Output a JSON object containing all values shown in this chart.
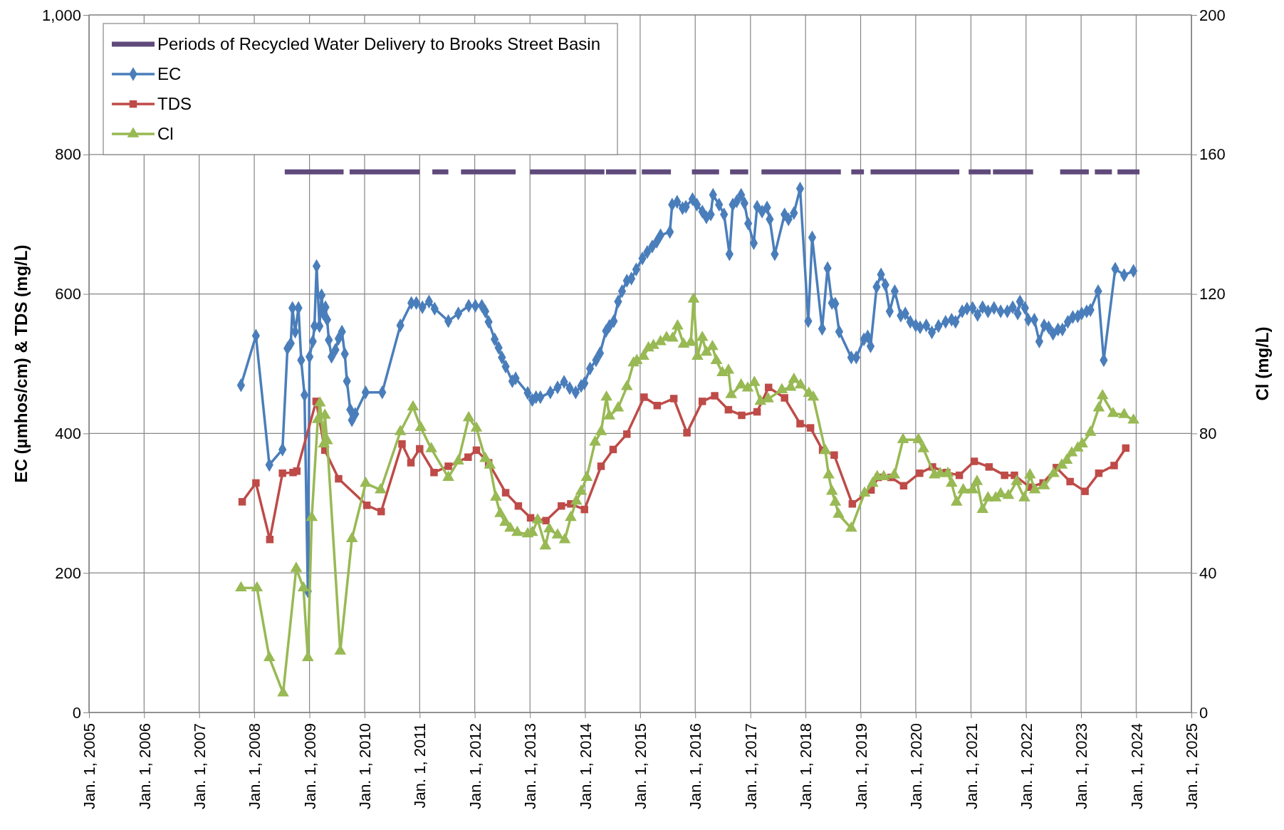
{
  "chart_data": {
    "type": "line",
    "ylabel": "EC (µmhos/cm) & TDS (mg/L)",
    "y2label": "Cl (mg/L)",
    "xlim": [
      "2005-01-01",
      "2025-01-01"
    ],
    "xticks": [
      {
        "value": "2005-01-01",
        "label": "Jan. 1, 2005"
      },
      {
        "value": "2006-01-01",
        "label": "Jan. 1, 2006"
      },
      {
        "value": "2007-01-01",
        "label": "Jan. 1, 2007"
      },
      {
        "value": "2008-01-01",
        "label": "Jan. 1, 2008"
      },
      {
        "value": "2009-01-01",
        "label": "Jan. 1, 2009"
      },
      {
        "value": "2010-01-01",
        "label": "Jan. 1, 2010"
      },
      {
        "value": "2011-01-01",
        "label": "Jan. 1, 2011"
      },
      {
        "value": "2012-01-01",
        "label": "Jan. 1, 2012"
      },
      {
        "value": "2013-01-01",
        "label": "Jan. 1, 2013"
      },
      {
        "value": "2014-01-01",
        "label": "Jan. 1, 2014"
      },
      {
        "value": "2015-01-01",
        "label": "Jan. 1, 2015"
      },
      {
        "value": "2016-01-01",
        "label": "Jan. 1, 2016"
      },
      {
        "value": "2017-01-01",
        "label": "Jan. 1, 2017"
      },
      {
        "value": "2018-01-01",
        "label": "Jan. 1, 2018"
      },
      {
        "value": "2019-01-01",
        "label": "Jan. 1, 2019"
      },
      {
        "value": "2020-01-01",
        "label": "Jan. 1, 2020"
      },
      {
        "value": "2021-01-01",
        "label": "Jan. 1, 2021"
      },
      {
        "value": "2022-01-01",
        "label": "Jan. 1, 2022"
      },
      {
        "value": "2023-01-01",
        "label": "Jan. 1, 2023"
      },
      {
        "value": "2024-01-01",
        "label": "Jan. 1, 2024"
      },
      {
        "value": "2025-01-01",
        "label": "Jan. 1, 2025"
      }
    ],
    "ylim": [
      0,
      1000
    ],
    "yticks": [
      0,
      200,
      400,
      600,
      800,
      {
        "value": 1000,
        "label": "1,000"
      }
    ],
    "y2lim": [
      0,
      200
    ],
    "y2ticks": [
      0,
      40,
      80,
      120,
      160,
      200
    ],
    "grid": true,
    "legend": "top left",
    "line_style": "solid",
    "series": [
      {
        "name": "Periods of Recycled Water Delivery to Brooks Street Basin",
        "color": "#604a7b",
        "marker": "none",
        "x": [
          "2008-07-21",
          "2009-08-15",
          "2009-09-03",
          "2009-09-24",
          "2011-01-01",
          "2011-02-10",
          "2011-03-26",
          "2011-07-10",
          "2011-08-19",
          "2011-10-02",
          "2012-09-28",
          "2012-11-15",
          "2013-01-01",
          "2014-05-09",
          "2014-05-12",
          "2014-05-20",
          "2014-12-06",
          "2014-12-25",
          "2015-01-12",
          "2015-07-24",
          "2015-10-02",
          "2015-12-10",
          "2016-06-07",
          "2016-07-13",
          "2016-08-19",
          "2016-12-17",
          "2017-01-30",
          "2017-03-15",
          "2018-08-23",
          "2018-09-24",
          "2018-10-31",
          "2019-01-23",
          "2019-02-14",
          "2019-03-08",
          "2020-10-16",
          "2020-11-15",
          "2020-12-17",
          "2021-05-12",
          "2021-05-20",
          "2021-05-27",
          "2022-02-17",
          "2022-05-16",
          "2022-08-15",
          "2023-02-21",
          "2023-03-15",
          "2023-04-02",
          "2023-07-24",
          "2023-08-12",
          "2023-08-30",
          "2024-01-23"
        ],
        "values": [
          775,
          775,
          null,
          775,
          775,
          null,
          775,
          775,
          null,
          775,
          775,
          null,
          775,
          775,
          null,
          775,
          775,
          null,
          775,
          775,
          null,
          775,
          775,
          null,
          775,
          775,
          null,
          775,
          775,
          null,
          775,
          775,
          null,
          775,
          775,
          null,
          775,
          775,
          null,
          775,
          775,
          null,
          775,
          775,
          null,
          775,
          775,
          null,
          775,
          775
        ]
      },
      {
        "name": "EC",
        "color": "#4a7ebb",
        "marker": "diamond",
        "x": [
          "2007-10-05",
          "2008-01-12",
          "2008-04-10",
          "2008-07-06",
          "2008-08-08",
          "2008-08-30",
          "2008-09-10",
          "2008-09-28",
          "2008-10-20",
          "2008-11-07",
          "2008-11-29",
          "2008-12-21",
          "2009-01-01",
          "2009-01-23",
          "2009-02-03",
          "2009-02-17",
          "2009-03-08",
          "2009-03-22",
          "2009-04-02",
          "2009-04-17",
          "2009-04-28",
          "2009-05-09",
          "2009-05-27",
          "2009-06-22",
          "2009-07-13",
          "2009-08-04",
          "2009-08-23",
          "2009-09-06",
          "2009-09-28",
          "2009-10-09",
          "2009-10-31",
          "2010-01-08",
          "2010-04-28",
          "2010-08-26",
          "2010-11-07",
          "2010-12-10",
          "2011-01-19",
          "2011-03-04",
          "2011-04-10",
          "2011-07-10",
          "2011-09-14",
          "2011-11-22",
          "2012-01-05",
          "2012-02-17",
          "2012-03-11",
          "2012-04-02",
          "2012-05-12",
          "2012-06-07",
          "2012-06-29",
          "2012-07-24",
          "2012-09-06",
          "2012-09-28",
          "2012-12-17",
          "2013-01-16",
          "2013-02-10",
          "2013-03-11",
          "2013-05-16",
          "2013-07-03",
          "2013-08-15",
          "2013-09-21",
          "2013-10-31",
          "2013-12-06",
          "2013-12-28",
          "2014-02-03",
          "2014-03-15",
          "2014-04-10",
          "2014-05-20",
          "2014-06-11",
          "2014-07-10",
          "2014-08-08",
          "2014-09-03",
          "2014-10-05",
          "2014-11-04",
          "2014-12-06",
          "2015-01-16",
          "2015-02-17",
          "2015-03-22",
          "2015-04-21",
          "2015-05-16",
          "2015-07-17",
          "2015-08-01",
          "2015-09-03",
          "2015-10-09",
          "2015-10-31",
          "2015-12-14",
          "2016-01-12",
          "2016-02-17",
          "2016-03-15",
          "2016-04-13",
          "2016-04-28",
          "2016-06-07",
          "2016-07-10",
          "2016-08-15",
          "2016-09-06",
          "2016-10-02",
          "2016-10-31",
          "2016-11-22",
          "2016-12-17",
          "2017-01-23",
          "2017-02-14",
          "2017-03-19",
          "2017-04-21",
          "2017-05-09",
          "2017-06-11",
          "2017-08-15",
          "2017-09-10",
          "2017-10-16",
          "2017-11-26",
          "2018-01-19",
          "2018-02-14",
          "2018-04-21",
          "2018-05-27",
          "2018-06-25",
          "2018-07-17",
          "2018-08-12",
          "2018-10-31",
          "2018-12-03",
          "2019-01-23",
          "2019-02-17",
          "2019-03-08",
          "2019-04-17",
          "2019-05-16",
          "2019-06-14",
          "2019-07-13",
          "2019-08-15",
          "2019-09-24",
          "2019-10-24",
          "2019-11-26",
          "2020-01-01",
          "2020-01-30",
          "2020-03-11",
          "2020-04-17",
          "2020-05-31",
          "2020-07-17",
          "2020-08-26",
          "2020-09-21",
          "2020-11-04",
          "2020-12-06",
          "2021-01-12",
          "2021-02-14",
          "2021-03-19",
          "2021-04-24",
          "2021-06-03",
          "2021-07-17",
          "2021-08-30",
          "2021-10-05",
          "2021-11-07",
          "2021-11-22",
          "2021-12-25",
          "2022-01-16",
          "2022-02-25",
          "2022-03-30",
          "2022-05-01",
          "2022-05-31",
          "2022-06-29",
          "2022-08-01",
          "2022-08-30",
          "2022-10-05",
          "2022-11-07",
          "2022-12-10",
          "2023-01-05",
          "2023-02-07",
          "2023-03-04",
          "2023-04-24",
          "2023-05-31",
          "2023-08-15",
          "2023-10-13",
          "2023-12-14"
        ],
        "values": [
          469,
          540,
          355,
          377,
          522,
          529,
          580,
          546,
          580,
          505,
          455,
          174,
          510,
          532,
          554,
          640,
          554,
          598,
          572,
          581,
          563,
          534,
          510,
          520,
          536,
          546,
          514,
          475,
          434,
          419,
          428,
          459,
          459,
          555,
          587,
          587,
          581,
          589,
          579,
          561,
          572,
          583,
          583,
          583,
          575,
          560,
          535,
          523,
          509,
          496,
          475,
          479,
          458,
          448,
          452,
          452,
          459,
          466,
          474,
          465,
          459,
          468,
          472,
          493,
          505,
          515,
          547,
          554,
          561,
          589,
          604,
          619,
          622,
          635,
          651,
          660,
          668,
          675,
          684,
          689,
          728,
          732,
          723,
          725,
          736,
          728,
          718,
          710,
          714,
          742,
          728,
          714,
          657,
          728,
          733,
          742,
          730,
          701,
          673,
          725,
          718,
          724,
          707,
          657,
          714,
          707,
          716,
          751,
          561,
          681,
          550,
          637,
          587,
          586,
          546,
          509,
          509,
          535,
          539,
          525,
          610,
          628,
          613,
          575,
          604,
          569,
          572,
          560,
          555,
          552,
          555,
          545,
          554,
          560,
          563,
          560,
          575,
          579,
          580,
          570,
          581,
          575,
          580,
          575,
          575,
          581,
          572,
          589,
          580,
          563,
          563,
          532,
          555,
          552,
          543,
          549,
          549,
          560,
          567,
          568,
          572,
          575,
          577,
          604,
          505,
          636,
          627,
          633
        ]
      },
      {
        "name": "TDS",
        "color": "#be4b48",
        "marker": "square",
        "x": [
          "2007-10-13",
          "2008-01-12",
          "2008-04-13",
          "2008-07-06",
          "2008-09-14",
          "2008-10-09",
          "2009-02-14",
          "2009-04-13",
          "2009-07-13",
          "2010-01-16",
          "2010-04-21",
          "2010-09-06",
          "2010-11-04",
          "2011-01-01",
          "2011-04-06",
          "2011-07-10",
          "2011-11-18",
          "2012-01-12",
          "2012-04-02",
          "2012-07-24",
          "2012-10-16",
          "2013-01-05",
          "2013-04-17",
          "2013-07-28",
          "2013-09-28",
          "2013-12-28",
          "2014-04-17",
          "2014-07-06",
          "2014-10-05",
          "2015-01-27",
          "2015-04-24",
          "2015-08-12",
          "2015-11-07",
          "2016-02-17",
          "2016-05-09",
          "2016-08-08",
          "2016-11-04",
          "2017-02-14",
          "2017-05-01",
          "2017-08-15",
          "2017-11-26",
          "2018-02-03",
          "2018-04-24",
          "2018-07-10",
          "2018-11-07",
          "2019-03-11",
          "2019-04-28",
          "2019-07-21",
          "2019-10-13",
          "2020-01-27",
          "2020-04-21",
          "2020-07-24",
          "2020-10-16",
          "2021-01-23",
          "2021-05-01",
          "2021-08-12",
          "2021-10-16",
          "2022-01-27",
          "2022-04-24",
          "2022-07-21",
          "2022-10-20",
          "2023-01-27",
          "2023-04-28",
          "2023-08-08",
          "2023-10-24"
        ],
        "values": [
          302,
          329,
          248,
          343,
          344,
          346,
          446,
          376,
          335,
          297,
          288,
          385,
          358,
          378,
          344,
          353,
          366,
          376,
          358,
          315,
          296,
          279,
          275,
          296,
          299,
          291,
          353,
          377,
          399,
          452,
          440,
          450,
          401,
          446,
          454,
          434,
          426,
          431,
          466,
          451,
          414,
          408,
          376,
          369,
          299,
          319,
          337,
          337,
          325,
          343,
          352,
          344,
          340,
          360,
          352,
          340,
          340,
          323,
          329,
          351,
          331,
          317,
          343,
          354,
          379
        ]
      },
      {
        "name": "Cl",
        "color": "#98b954",
        "marker": "triangle",
        "axis": "y2",
        "x": [
          "2007-10-05",
          "2008-01-19",
          "2008-04-10",
          "2008-07-10",
          "2008-10-05",
          "2008-11-22",
          "2008-12-21",
          "2009-01-16",
          "2009-02-25",
          "2009-03-11",
          "2009-04-06",
          "2009-04-13",
          "2009-04-28",
          "2009-07-24",
          "2009-10-09",
          "2010-01-08",
          "2010-04-17",
          "2010-08-26",
          "2010-11-18",
          "2011-01-08",
          "2011-03-19",
          "2011-07-10",
          "2011-09-14",
          "2011-11-22",
          "2012-01-12",
          "2012-03-11",
          "2012-04-10",
          "2012-05-20",
          "2012-06-18",
          "2012-07-21",
          "2012-08-23",
          "2012-10-09",
          "2012-12-17",
          "2013-01-16",
          "2013-02-21",
          "2013-04-13",
          "2013-05-09",
          "2013-07-03",
          "2013-08-19",
          "2013-09-28",
          "2013-11-04",
          "2013-12-06",
          "2014-01-12",
          "2014-03-08",
          "2014-04-17",
          "2014-05-23",
          "2014-06-11",
          "2014-08-08",
          "2014-10-05",
          "2014-11-18",
          "2014-12-10",
          "2015-01-23",
          "2015-02-25",
          "2015-03-30",
          "2015-05-16",
          "2015-06-25",
          "2015-08-04",
          "2015-09-06",
          "2015-10-16",
          "2015-12-03",
          "2015-12-21",
          "2016-01-16",
          "2016-02-17",
          "2016-03-15",
          "2016-04-24",
          "2016-05-20",
          "2016-06-29",
          "2016-08-08",
          "2016-08-26",
          "2016-10-31",
          "2016-12-14",
          "2017-01-27",
          "2017-03-08",
          "2017-04-28",
          "2017-07-28",
          "2017-09-24",
          "2017-10-16",
          "2017-11-29",
          "2018-01-23",
          "2018-02-21",
          "2018-05-12",
          "2018-06-03",
          "2018-06-25",
          "2018-07-17",
          "2018-08-08",
          "2018-10-31",
          "2019-01-27",
          "2019-03-22",
          "2019-04-21",
          "2019-06-03",
          "2019-08-12",
          "2019-10-09",
          "2020-01-19",
          "2020-02-21",
          "2020-05-05",
          "2020-06-11",
          "2020-08-01",
          "2020-08-26",
          "2020-09-28",
          "2020-11-11",
          "2021-01-12",
          "2021-02-10",
          "2021-03-19",
          "2021-04-24",
          "2021-06-14",
          "2021-07-17",
          "2021-09-06",
          "2021-10-31",
          "2021-12-21",
          "2022-01-27",
          "2022-02-28",
          "2022-05-01",
          "2022-07-03",
          "2022-08-26",
          "2022-09-28",
          "2022-10-31",
          "2022-12-10",
          "2023-01-08",
          "2023-03-04",
          "2023-04-28",
          "2023-05-23",
          "2023-08-01",
          "2023-10-13",
          "2023-12-14"
        ],
        "values": [
          35.7,
          35.7,
          15.7,
          5.6,
          41.3,
          35.7,
          15.7,
          55.9,
          84.0,
          88.7,
          77.0,
          85.2,
          77.9,
          17.6,
          49.8,
          65.7,
          63.8,
          80.5,
          87.6,
          81.7,
          75.6,
          67.4,
          72.1,
          84.5,
          81.5,
          72.8,
          70.9,
          61.7,
          57.0,
          54.5,
          52.8,
          51.6,
          51.2,
          51.6,
          55.2,
          47.7,
          52.6,
          50.9,
          49.5,
          55.9,
          60.6,
          63.4,
          67.4,
          77.5,
          80.5,
          90.4,
          85.0,
          87.3,
          93.4,
          100.2,
          100.9,
          102.1,
          104.5,
          105.2,
          106.3,
          107.5,
          107.3,
          110.8,
          105.6,
          106.1,
          118.5,
          102.1,
          107.5,
          103.3,
          104.9,
          100.9,
          97.4,
          98.1,
          91.1,
          93.9,
          93.0,
          94.6,
          89.2,
          89.9,
          92.5,
          93.2,
          95.5,
          93.9,
          91.5,
          90.4,
          75.1,
          68.1,
          63.4,
          60.3,
          56.8,
          52.8,
          62.9,
          65.7,
          67.6,
          67.6,
          68.1,
          78.2,
          78.2,
          75.6,
          68.1,
          68.5,
          68.5,
          65.7,
          60.3,
          63.8,
          63.8,
          66.2,
          58.2,
          61.5,
          61.5,
          62.7,
          62.2,
          66.2,
          61.5,
          68.1,
          63.8,
          65.0,
          68.5,
          70.9,
          72.3,
          74.4,
          75.8,
          77.0,
          80.3,
          87.3,
          90.8,
          85.7,
          85.4,
          83.8
        ]
      }
    ]
  }
}
